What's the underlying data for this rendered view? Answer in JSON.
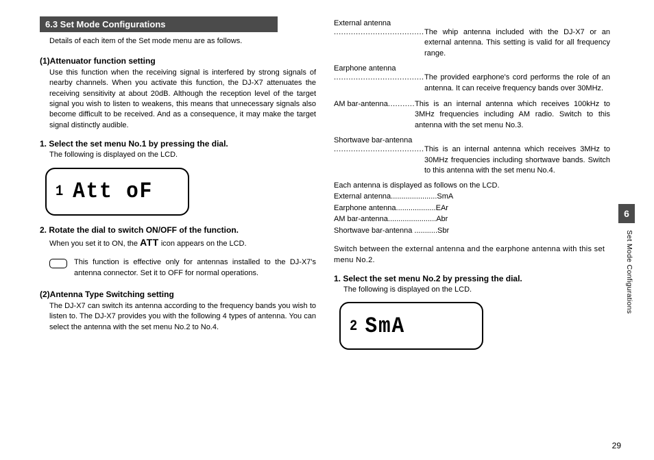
{
  "chapter": {
    "number": "6",
    "side_label": "Set Mode Configurations"
  },
  "page_number": "29",
  "left": {
    "section_header": "6.3 Set Mode Configurations",
    "intro": "Details of each item of the Set mode menu are as follows.",
    "att": {
      "heading": "(1)Attenuator function setting",
      "body": "Use this function when the receiving signal is interfered by strong signals of nearby channels. When you activate this function, the DJ-X7 attenuates the receiving sensitivity at about 20dB. Although the reception level of the target signal you wish to listen to weakens, this means that unnecessary signals also become difficult to be received. And as a consequence, it may make the target signal distinctly audible."
    },
    "step1": {
      "heading": "1. Select the set menu No.1 by pressing the dial.",
      "body": "The following is displayed on the LCD."
    },
    "lcd1": {
      "index": "1",
      "text": "Att oF"
    },
    "step2": {
      "heading": "2. Rotate the dial to switch ON/OFF of the function.",
      "body_before": "When you set it to ON, the ",
      "att_word": "ATT",
      "body_after": " icon appears on the LCD."
    },
    "note": "This function is effective only for antennas installed to the DJ-X7's antenna connector. Set it to OFF for normal operations.",
    "antenna": {
      "heading": "(2)Antenna Type Switching setting",
      "body": "The DJ-X7 can switch its antenna according to the frequency bands you wish to listen to. The DJ-X7 provides you with the following 4 types of antenna. You can select the antenna with the set menu No.2 to No.4."
    }
  },
  "right": {
    "defs": {
      "ext": {
        "term": "External antenna",
        "desc": "The whip antenna included with the DJ-X7 or an external antenna. This setting is valid for all frequency range."
      },
      "ear": {
        "term": "Earphone antenna",
        "desc": "The provided earphone's cord performs the role of an antenna. It can receive frequency bands over 30MHz."
      },
      "am": {
        "term": "AM bar-antenna",
        "desc": "This is an internal antenna which receives 100kHz to 3MHz frequencies including AM radio. Switch to this antenna with the set menu No.3."
      },
      "sw": {
        "term": "Shortwave bar-antenna",
        "desc": "This is an internal antenna which receives 3MHz to 30MHz frequencies including shortwave bands. Switch to this antenna with the set menu No.4."
      }
    },
    "lcd_intro": "Each antenna is displayed as follows on the LCD.",
    "antlist": {
      "ext": {
        "label": "External antenna",
        "dots": "......................",
        "code": "SmA"
      },
      "ear": {
        "label": "Earphone antenna",
        "dots": "...................",
        "code": "EAr"
      },
      "am": {
        "label": "AM bar-antenna",
        "dots": ".......................",
        "code": "Abr"
      },
      "sw": {
        "label": "Shortwave bar-antenna",
        "dots": " ...........",
        "code": "Sbr"
      }
    },
    "switch_note": "Switch between the external antenna and the earphone antenna with this set menu No.2.",
    "stepR": {
      "heading": "1. Select the set menu No.2 by pressing the dial.",
      "body": "The following is displayed on the LCD."
    },
    "lcd2": {
      "index": "2",
      "text": "SmA"
    }
  }
}
